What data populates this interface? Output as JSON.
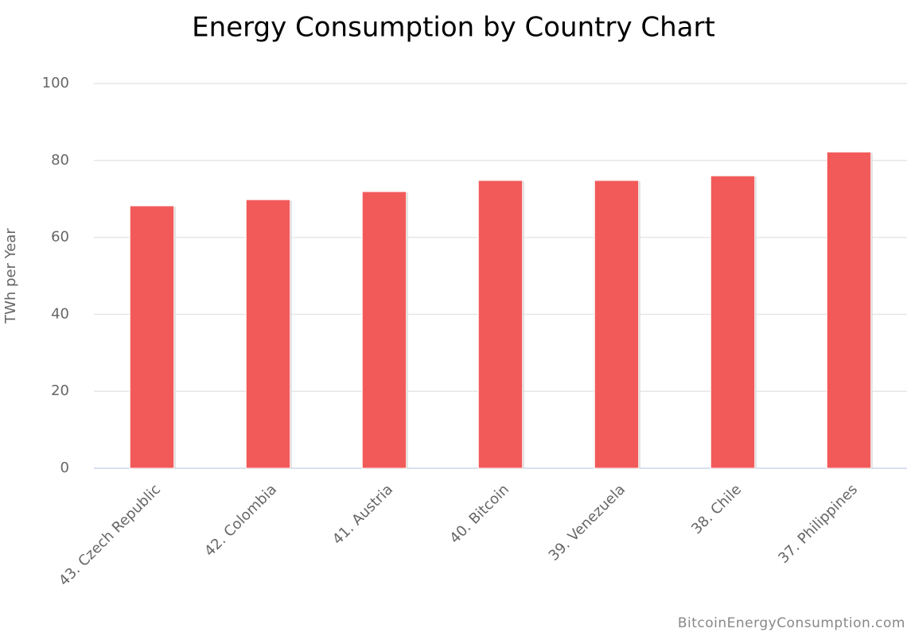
{
  "chart_data": {
    "type": "bar",
    "title": "Energy Consumption by Country Chart",
    "y_label": "TWh per Year",
    "credit": "BitcoinEnergyConsumption.com",
    "categories": [
      "43. Czech Republic",
      "42. Colombia",
      "41. Austria",
      "40. Bitcoin",
      "39. Venezuela",
      "38. Chile",
      "37. Philippines"
    ],
    "values": [
      68.2,
      69.8,
      71.9,
      74.8,
      74.8,
      76.0,
      82.2
    ],
    "color": "#f25a5a",
    "ylim": [
      0,
      100
    ],
    "yticks": [
      0,
      20,
      40,
      60,
      80,
      100
    ],
    "grid": true
  }
}
